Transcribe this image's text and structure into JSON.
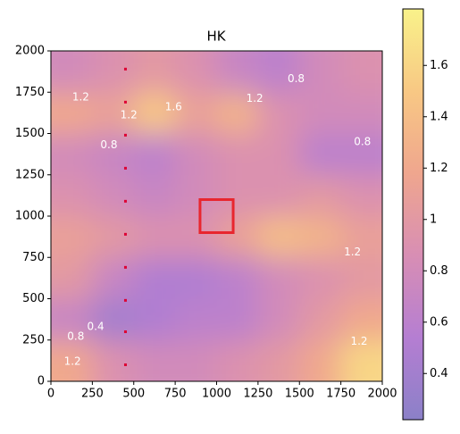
{
  "chart_data": {
    "type": "heatmap",
    "title": "HK",
    "xlim": [
      0,
      2000
    ],
    "ylim": [
      0,
      2000
    ],
    "xticks": [
      0,
      250,
      500,
      750,
      1000,
      1250,
      1500,
      1750,
      2000
    ],
    "yticks": [
      0,
      250,
      500,
      750,
      1000,
      1250,
      1500,
      1750,
      2000
    ],
    "z": [
      [
        1.2,
        0.9,
        0.8,
        0.8,
        0.9,
        1.0,
        1.2,
        1.6
      ],
      [
        0.7,
        0.4,
        0.5,
        0.6,
        0.6,
        0.8,
        1.0,
        1.2
      ],
      [
        1.0,
        0.7,
        0.5,
        0.5,
        0.6,
        0.8,
        0.9,
        1.0
      ],
      [
        1.1,
        1.0,
        0.9,
        0.9,
        1.1,
        1.4,
        1.3,
        1.1
      ],
      [
        0.9,
        0.8,
        0.7,
        0.8,
        0.9,
        0.9,
        1.0,
        0.9
      ],
      [
        0.8,
        0.7,
        0.6,
        0.8,
        0.9,
        0.9,
        0.6,
        0.6
      ],
      [
        1.2,
        1.1,
        1.5,
        1.1,
        1.3,
        0.9,
        0.8,
        0.8
      ],
      [
        0.8,
        0.9,
        1.0,
        0.9,
        0.7,
        0.6,
        0.8,
        0.9
      ]
    ],
    "clim": [
      0.22,
      1.82
    ],
    "cticks": [
      0.4,
      0.6,
      0.8,
      1.0,
      1.2,
      1.4,
      1.6
    ],
    "colormap": [
      "#8b80c8",
      "#b57ed2",
      "#d88eb4",
      "#efa68e",
      "#f8c884",
      "#f9f28a"
    ],
    "contour_labels": [
      {
        "level": 0.8,
        "x": 1480,
        "y": 1830
      },
      {
        "level": 1.2,
        "x": 180,
        "y": 1720
      },
      {
        "level": 1.2,
        "x": 470,
        "y": 1610
      },
      {
        "level": 1.6,
        "x": 740,
        "y": 1660
      },
      {
        "level": 1.2,
        "x": 1230,
        "y": 1710
      },
      {
        "level": 0.8,
        "x": 350,
        "y": 1430
      },
      {
        "level": 0.8,
        "x": 1880,
        "y": 1450
      },
      {
        "level": 1.2,
        "x": 1820,
        "y": 780
      },
      {
        "level": 0.4,
        "x": 270,
        "y": 330
      },
      {
        "level": 0.8,
        "x": 150,
        "y": 270
      },
      {
        "level": 1.2,
        "x": 130,
        "y": 120
      },
      {
        "level": 1.2,
        "x": 1860,
        "y": 240
      }
    ],
    "markers": {
      "x": [
        450,
        450,
        450,
        450,
        450,
        450,
        450,
        450,
        450,
        450
      ],
      "y": [
        100,
        300,
        490,
        690,
        890,
        1090,
        1290,
        1490,
        1690,
        1890
      ],
      "color": "#dd0033"
    },
    "box": {
      "xlim": [
        900,
        1100
      ],
      "ylim": [
        900,
        1100
      ],
      "color": "#e8262e"
    }
  }
}
